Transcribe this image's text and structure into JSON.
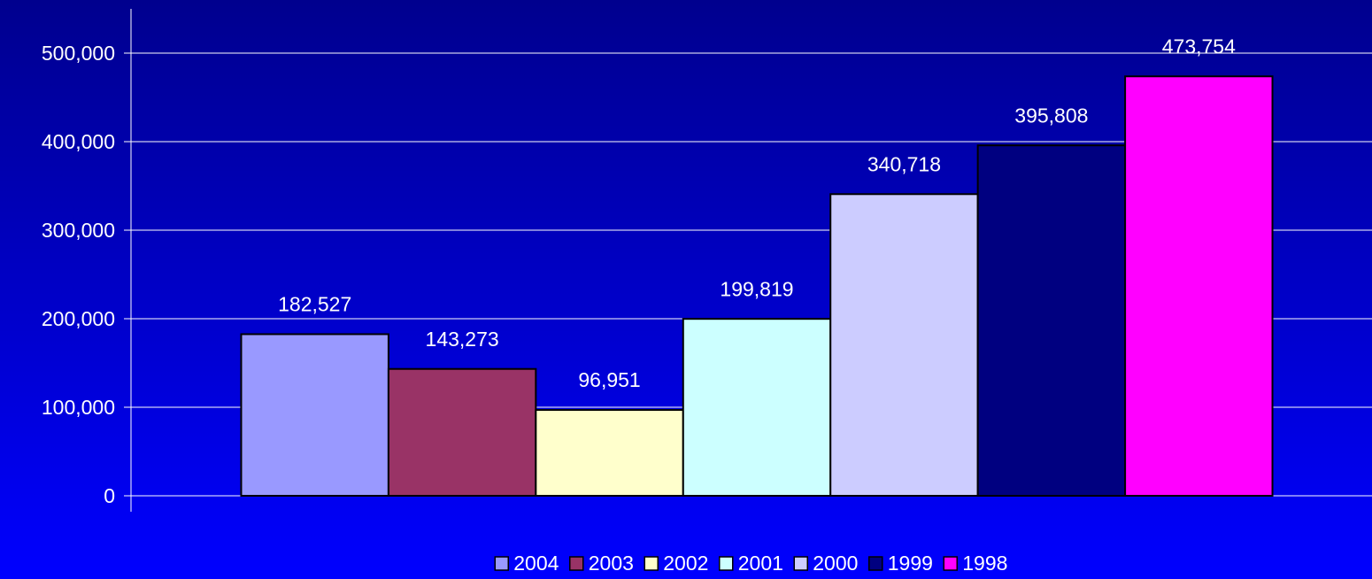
{
  "chart_data": {
    "type": "bar",
    "categories": [
      null
    ],
    "series": [
      {
        "name": "2004",
        "color": "#9999ff",
        "values": [
          182527
        ],
        "value_labels": [
          "182,527"
        ]
      },
      {
        "name": "2003",
        "color": "#993366",
        "values": [
          143273
        ],
        "value_labels": [
          "143,273"
        ]
      },
      {
        "name": "2002",
        "color": "#ffffcc",
        "values": [
          96951
        ],
        "value_labels": [
          "96,951"
        ]
      },
      {
        "name": "2001",
        "color": "#ccffff",
        "values": [
          199819
        ],
        "value_labels": [
          "199,819"
        ]
      },
      {
        "name": "2000",
        "color": "#ccccff",
        "values": [
          340718
        ],
        "value_labels": [
          "340,718"
        ]
      },
      {
        "name": "1999",
        "color": "#000080",
        "values": [
          395808
        ],
        "value_labels": [
          "395,808"
        ]
      },
      {
        "name": "1998",
        "color": "#ff00ff",
        "values": [
          473754
        ],
        "value_labels": [
          "473,754"
        ]
      }
    ],
    "ylim": [
      0,
      550000
    ],
    "yticks": [
      0,
      {
        "value": 100000,
        "label": "100,000"
      },
      {
        "value": 200000,
        "label": "200,000"
      },
      {
        "value": 300000,
        "label": "300,000"
      },
      {
        "value": 400000,
        "label": "400,000"
      },
      {
        "value": 500000,
        "label": "500,000"
      }
    ],
    "grid": true,
    "legend": "bottom"
  }
}
